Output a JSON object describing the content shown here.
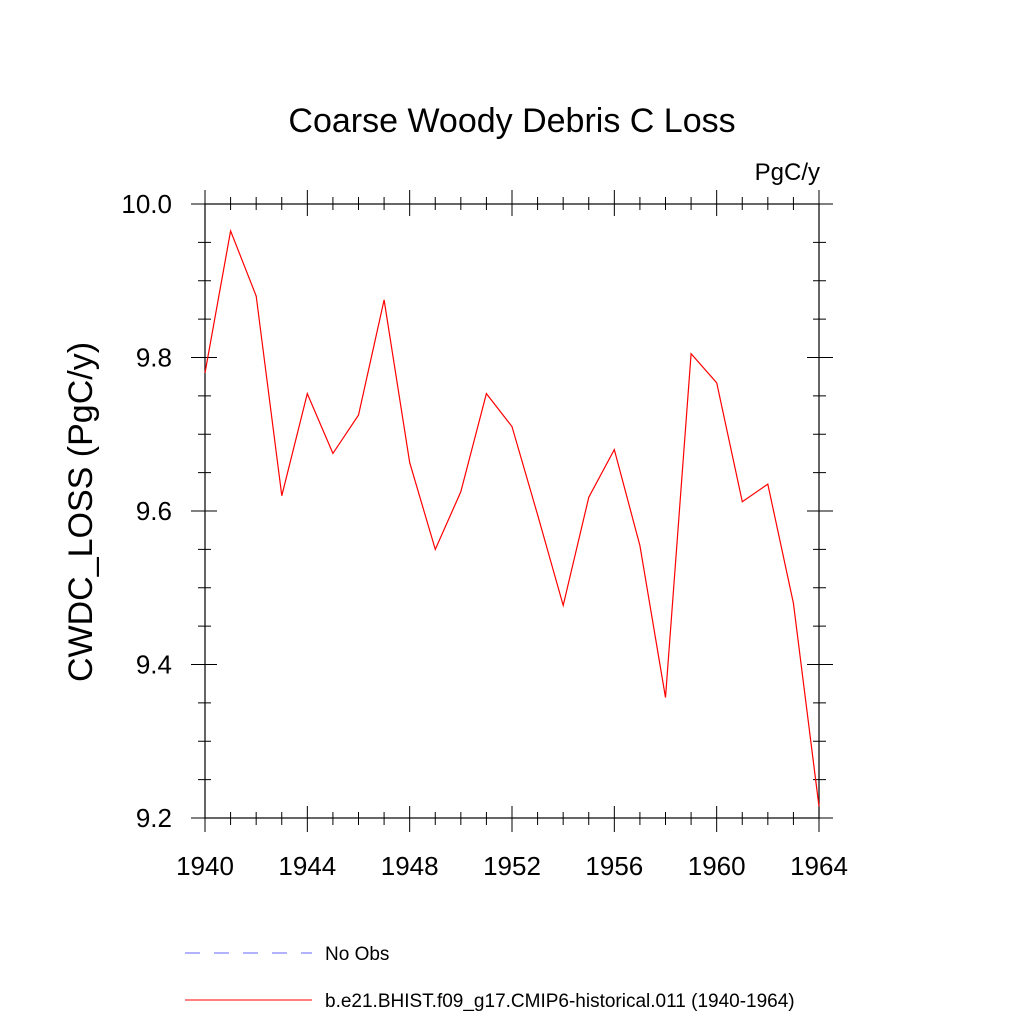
{
  "chart_data": {
    "type": "line",
    "title": "Coarse Woody Debris C Loss",
    "units_label": "PgC/y",
    "ylabel": "CWDC_LOSS  (PgC/y)",
    "xlabel": "",
    "xlim": [
      1940,
      1964
    ],
    "ylim": [
      9.2,
      10.0
    ],
    "x_major_ticks": [
      1940,
      1944,
      1948,
      1952,
      1956,
      1960,
      1964
    ],
    "x_tick_labels": [
      "1940",
      "1944",
      "1948",
      "1952",
      "1956",
      "1960",
      "1964"
    ],
    "y_major_ticks": [
      9.2,
      9.4,
      9.6,
      9.8,
      10.0
    ],
    "y_tick_labels": [
      "9.2",
      "9.4",
      "9.6",
      "9.8",
      "10.0"
    ],
    "grid": false,
    "legend_position": "bottom",
    "series": [
      {
        "name": "b.e21.BHIST.f09_g17.CMIP6-historical.011 (1940-1964)",
        "color": "#ff0000",
        "style": "solid",
        "x": [
          1940,
          1941,
          1942,
          1943,
          1944,
          1945,
          1946,
          1947,
          1948,
          1949,
          1950,
          1951,
          1952,
          1953,
          1954,
          1955,
          1956,
          1957,
          1958,
          1959,
          1960,
          1961,
          1962,
          1963,
          1964
        ],
        "y": [
          9.78,
          9.965,
          9.88,
          9.62,
          9.753,
          9.675,
          9.725,
          9.875,
          9.663,
          9.55,
          9.625,
          9.753,
          9.71,
          9.595,
          9.477,
          9.618,
          9.68,
          9.555,
          9.357,
          9.805,
          9.767,
          9.612,
          9.635,
          9.48,
          9.215
        ]
      }
    ],
    "legend": [
      {
        "label": "No Obs",
        "color": "#6666ff",
        "style": "dashed"
      },
      {
        "label": "b.e21.BHIST.f09_g17.CMIP6-historical.011 (1940-1964)",
        "color": "#ff0000",
        "style": "solid"
      }
    ]
  }
}
